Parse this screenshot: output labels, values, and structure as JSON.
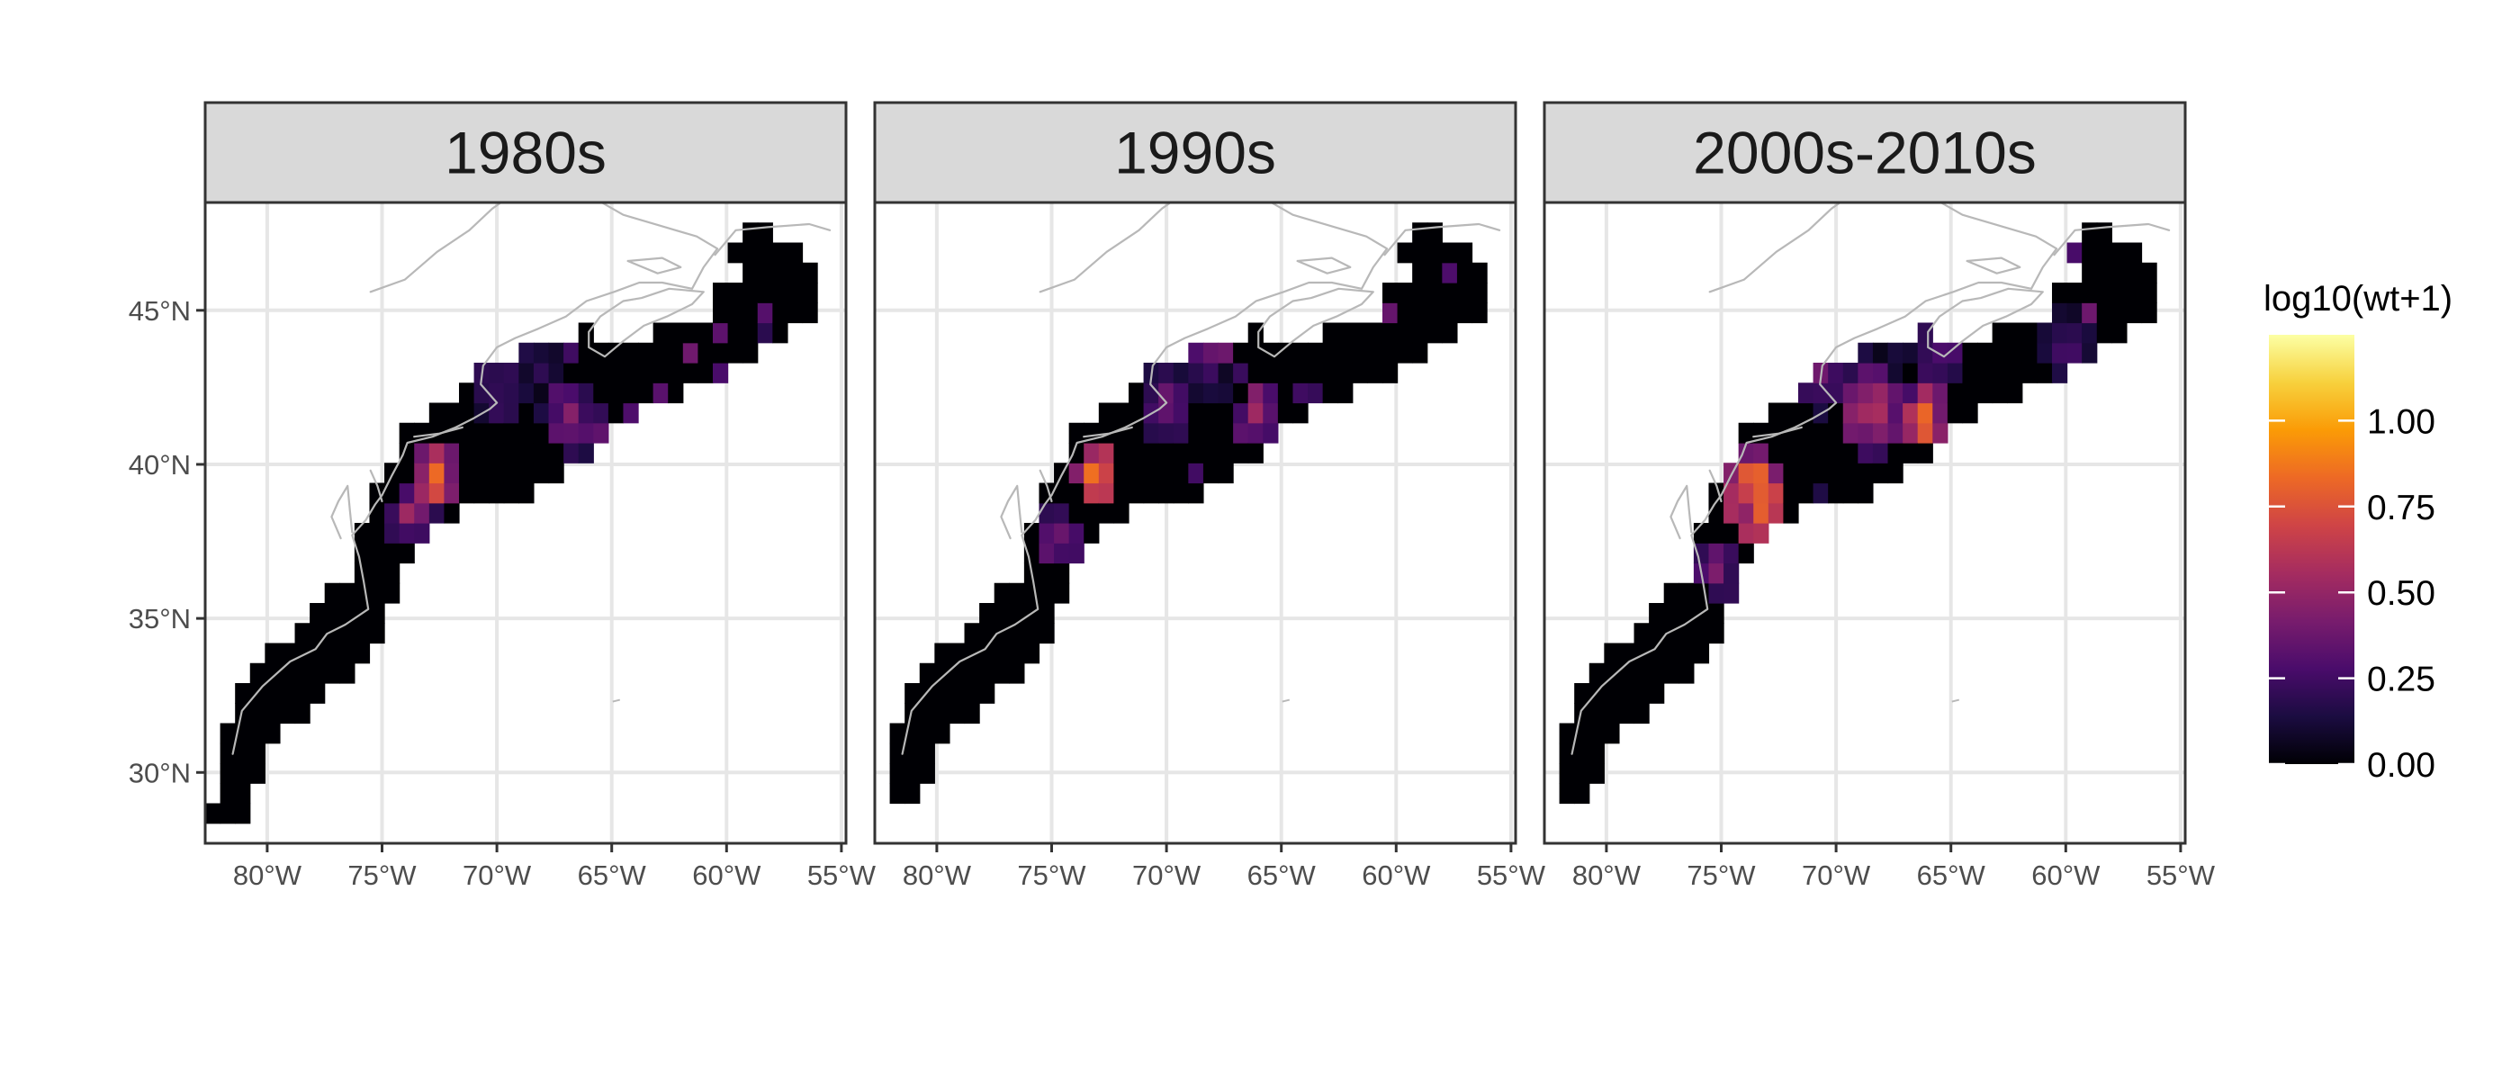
{
  "chart_data": {
    "type": "heatmap",
    "facets": [
      "1980s",
      "1990s",
      "2000s-2010s"
    ],
    "x_ticks": [
      "80°W",
      "75°W",
      "70°W",
      "65°W",
      "60°W",
      "55°W"
    ],
    "x_tick_values": [
      -80,
      -75,
      -70,
      -65,
      -60,
      -55
    ],
    "y_ticks": [
      "30°N",
      "35°N",
      "40°N",
      "45°N"
    ],
    "y_tick_values": [
      30,
      35,
      40,
      45
    ],
    "xlim": [
      -82.7,
      -54.8
    ],
    "ylim": [
      27.7,
      48.5
    ],
    "legend": {
      "title": "log10(wt+1)",
      "breaks": [
        "0.00",
        "0.25",
        "0.50",
        "0.75",
        "1.00"
      ],
      "break_values": [
        0,
        0.25,
        0.5,
        0.75,
        1.0
      ],
      "max_value": 1.25,
      "colors": [
        "#000004",
        "#1b0c41",
        "#4a0c6b",
        "#781c6d",
        "#a52c60",
        "#cf4446",
        "#ed6925",
        "#fb9b06",
        "#f7d13d",
        "#fcffa4"
      ]
    },
    "grid_cell_deg": 0.65,
    "survey_band": [
      {
        "lon": -81.6,
        "lat": 28.7,
        "hw": 0.8
      },
      {
        "lon": -81.3,
        "lat": 30.5,
        "hw": 1.0
      },
      {
        "lon": -80.2,
        "lat": 32.2,
        "hw": 1.2
      },
      {
        "lon": -77.5,
        "lat": 34.0,
        "hw": 1.3
      },
      {
        "lon": -75.5,
        "lat": 35.8,
        "hw": 1.1
      },
      {
        "lon": -74.5,
        "lat": 38.3,
        "hw": 1.3
      },
      {
        "lon": -72.5,
        "lat": 40.0,
        "hw": 1.8
      },
      {
        "lon": -69.0,
        "lat": 41.3,
        "hw": 2.3
      },
      {
        "lon": -66.0,
        "lat": 42.5,
        "hw": 1.8
      },
      {
        "lon": -63.0,
        "lat": 43.6,
        "hw": 1.5
      },
      {
        "lon": -59.5,
        "lat": 44.8,
        "hw": 1.5
      },
      {
        "lon": -57.5,
        "lat": 45.8,
        "hw": 1.5
      },
      {
        "lon": -58.8,
        "lat": 46.8,
        "hw": 0.9
      }
    ],
    "gulf_of_maine": {
      "lon0": -71.0,
      "lon1": -66.8,
      "lat0": 42.3,
      "lat1": 44.6
    },
    "nova_scotia_gap": {
      "lon0": -66.0,
      "lon1": -60.6,
      "lat0": 44.2,
      "lat1": 46.2
    },
    "southern_cutoff_lat": [
      28.2,
      29.3,
      29.3
    ],
    "hotspots": [
      [
        {
          "lon": -72.6,
          "lat": 39.6,
          "value": 1.0,
          "radius": 1.1
        },
        {
          "lon": -73.8,
          "lat": 38.4,
          "value": 0.6,
          "radius": 1.0
        },
        {
          "lon": -69.8,
          "lat": 42.3,
          "value": 0.35,
          "radius": 1.2
        },
        {
          "lon": -66.8,
          "lat": 41.6,
          "value": 0.55,
          "radius": 1.3
        },
        {
          "lon": -65.5,
          "lat": 41.0,
          "value": 0.45,
          "radius": 0.9
        }
      ],
      [
        {
          "lon": -73.0,
          "lat": 39.7,
          "value": 1.15,
          "radius": 1.0
        },
        {
          "lon": -74.8,
          "lat": 37.6,
          "value": 0.65,
          "radius": 1.0
        },
        {
          "lon": -66.0,
          "lat": 41.6,
          "value": 0.85,
          "radius": 1.0
        },
        {
          "lon": -68.0,
          "lat": 43.9,
          "value": 0.7,
          "radius": 1.0
        },
        {
          "lon": -70.0,
          "lat": 42.0,
          "value": 0.5,
          "radius": 1.2
        }
      ],
      [
        {
          "lon": -73.5,
          "lat": 39.0,
          "value": 1.2,
          "radius": 1.5
        },
        {
          "lon": -66.2,
          "lat": 41.5,
          "value": 1.05,
          "radius": 1.1
        },
        {
          "lon": -68.5,
          "lat": 41.7,
          "value": 0.75,
          "radius": 1.5
        },
        {
          "lon": -70.8,
          "lat": 42.8,
          "value": 0.55,
          "radius": 1.2
        },
        {
          "lon": -65.5,
          "lat": 43.6,
          "value": 0.4,
          "radius": 1.3
        },
        {
          "lon": -60.0,
          "lat": 43.8,
          "value": 0.35,
          "radius": 1.2
        },
        {
          "lon": -75.2,
          "lat": 36.6,
          "value": 0.55,
          "radius": 1.0
        }
      ]
    ],
    "coastline": [
      [
        [
          -81.5,
          30.6
        ],
        [
          -81.1,
          32.0
        ],
        [
          -80.2,
          32.8
        ],
        [
          -79.0,
          33.6
        ],
        [
          -77.9,
          34.0
        ],
        [
          -77.4,
          34.5
        ],
        [
          -76.6,
          34.8
        ],
        [
          -75.6,
          35.3
        ],
        [
          -75.8,
          36.2
        ],
        [
          -76.0,
          37.0
        ],
        [
          -76.3,
          37.7
        ],
        [
          -75.7,
          38.2
        ],
        [
          -75.3,
          38.7
        ],
        [
          -75.0,
          39.0
        ],
        [
          -74.6,
          39.6
        ],
        [
          -74.1,
          40.3
        ],
        [
          -73.9,
          40.7
        ],
        [
          -72.8,
          40.9
        ],
        [
          -71.8,
          41.2
        ],
        [
          -71.0,
          41.5
        ],
        [
          -70.3,
          41.8
        ],
        [
          -70.0,
          42.0
        ],
        [
          -70.7,
          42.6
        ],
        [
          -70.6,
          43.2
        ],
        [
          -70.0,
          43.8
        ],
        [
          -69.2,
          44.1
        ],
        [
          -68.2,
          44.4
        ],
        [
          -67.0,
          44.8
        ],
        [
          -66.1,
          45.3
        ],
        [
          -64.9,
          45.6
        ],
        [
          -63.8,
          45.9
        ],
        [
          -62.8,
          45.9
        ],
        [
          -61.5,
          45.7
        ],
        [
          -61.0,
          46.4
        ],
        [
          -60.4,
          47.0
        ],
        [
          -61.3,
          47.4
        ],
        [
          -64.5,
          48.1
        ],
        [
          -66.6,
          49.0
        ],
        [
          -68.5,
          49.2
        ],
        [
          -70.2,
          48.3
        ],
        [
          -71.2,
          47.6
        ],
        [
          -72.6,
          46.9
        ],
        [
          -74.0,
          46.0
        ],
        [
          -75.5,
          45.6
        ]
      ],
      [
        [
          -66.0,
          43.8
        ],
        [
          -65.3,
          43.5
        ],
        [
          -64.5,
          44.0
        ],
        [
          -63.6,
          44.5
        ],
        [
          -62.6,
          44.8
        ],
        [
          -61.5,
          45.2
        ],
        [
          -61.0,
          45.6
        ],
        [
          -62.5,
          45.7
        ],
        [
          -63.7,
          45.4
        ],
        [
          -64.5,
          45.3
        ],
        [
          -65.5,
          44.8
        ],
        [
          -66.0,
          44.3
        ],
        [
          -66.0,
          43.8
        ]
      ],
      [
        [
          -64.3,
          46.6
        ],
        [
          -63.0,
          46.2
        ],
        [
          -62.0,
          46.4
        ],
        [
          -62.8,
          46.7
        ],
        [
          -64.3,
          46.6
        ]
      ],
      [
        [
          -60.5,
          46.8
        ],
        [
          -59.6,
          47.6
        ],
        [
          -58.2,
          47.7
        ],
        [
          -56.4,
          47.8
        ],
        [
          -55.5,
          47.6
        ]
      ],
      [
        [
          -76.3,
          37.8
        ],
        [
          -76.4,
          38.5
        ],
        [
          -76.5,
          39.3
        ],
        [
          -76.9,
          38.8
        ],
        [
          -77.2,
          38.3
        ],
        [
          -76.8,
          37.6
        ]
      ],
      [
        [
          -75.5,
          39.8
        ],
        [
          -75.2,
          39.3
        ],
        [
          -75.0,
          38.8
        ]
      ],
      [
        [
          -71.5,
          41.2
        ],
        [
          -72.5,
          41.0
        ],
        [
          -73.6,
          40.9
        ]
      ]
    ],
    "island_mark": {
      "lon": -64.8,
      "lat": 32.3
    }
  }
}
